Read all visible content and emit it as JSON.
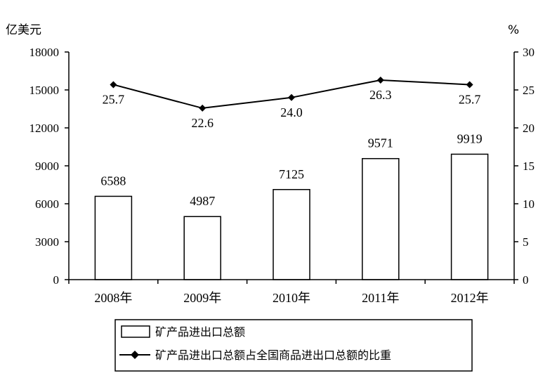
{
  "chart_data": {
    "type": "bar",
    "categories": [
      "2008年",
      "2009年",
      "2010年",
      "2011年",
      "2012年"
    ],
    "series": [
      {
        "name": "矿产品进出口总额",
        "type": "bar",
        "axis": "left",
        "values": [
          6588,
          4987,
          7125,
          9571,
          9919
        ],
        "labels": [
          "6588",
          "4987",
          "7125",
          "9571",
          "9919"
        ]
      },
      {
        "name": "矿产品进出口总额占全国商品进出口总额的比重",
        "type": "line",
        "axis": "right",
        "marker": "diamond",
        "values": [
          25.7,
          22.6,
          24.0,
          26.3,
          25.7
        ],
        "labels": [
          "25.7",
          "22.6",
          "24.0",
          "26.3",
          "25.7"
        ]
      }
    ],
    "left_axis": {
      "unit": "亿美元",
      "ylim": [
        0,
        18000
      ],
      "ticks": [
        "0",
        "3000",
        "6000",
        "9000",
        "12000",
        "15000",
        "18000"
      ]
    },
    "right_axis": {
      "unit": "%",
      "ylim": [
        0,
        30
      ],
      "ticks": [
        "0",
        "5",
        "10",
        "15",
        "20",
        "25",
        "30"
      ]
    },
    "grid": false,
    "legend_position": "bottom"
  }
}
